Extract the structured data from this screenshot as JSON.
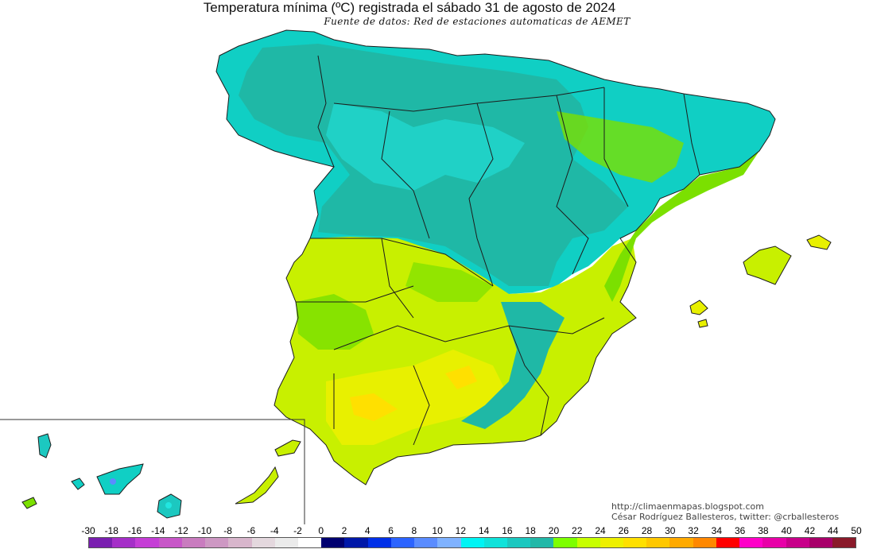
{
  "header": {
    "title": "Temperatura mínima (ºC) registrada el sábado 31 de agosto de 2024",
    "subtitle": "Fuente de datos: Red de estaciones automaticas de AEMET"
  },
  "credits": {
    "blog": "http://climaenmapas.blogspot.com",
    "author": "César Rodríguez Ballesteros, twitter: @crballesteros"
  },
  "legend": {
    "ticks": [
      "-30",
      "-18",
      "-16",
      "-14",
      "-12",
      "-10",
      "-8",
      "-6",
      "-4",
      "-2",
      "0",
      "2",
      "4",
      "6",
      "8",
      "10",
      "12",
      "14",
      "16",
      "18",
      "20",
      "22",
      "24",
      "26",
      "28",
      "30",
      "32",
      "34",
      "36",
      "38",
      "40",
      "42",
      "44",
      "50"
    ],
    "colors": [
      "#7a1fb0",
      "#a52fc8",
      "#c53ed6",
      "#c857c8",
      "#c97cbf",
      "#cd98c3",
      "#d8b6cc",
      "#e4d8de",
      "#ebebeb",
      "#ffffff",
      "#000070",
      "#0018a8",
      "#0030e8",
      "#2c64ff",
      "#5a8cff",
      "#7fb2ff",
      "#00f4f4",
      "#10e2da",
      "#1cc8c0",
      "#22b8a8",
      "#7dff00",
      "#c8ff00",
      "#eef000",
      "#ffe000",
      "#ffc800",
      "#ffaa00",
      "#ff8800",
      "#ff0000",
      "#ff00c8",
      "#e800a8",
      "#c8008a",
      "#a8006a",
      "#8a1a2a"
    ]
  },
  "map": {
    "colors": {
      "cyan_dark": "#1fb8a6",
      "cyan_mid": "#10cfc4",
      "cyan_light": "#21e6e0",
      "green": "#7be000",
      "yellow_green": "#c8f000",
      "yellow": "#e8f000",
      "yellow_warm": "#ffe000",
      "border": "#1c1c1c"
    }
  }
}
